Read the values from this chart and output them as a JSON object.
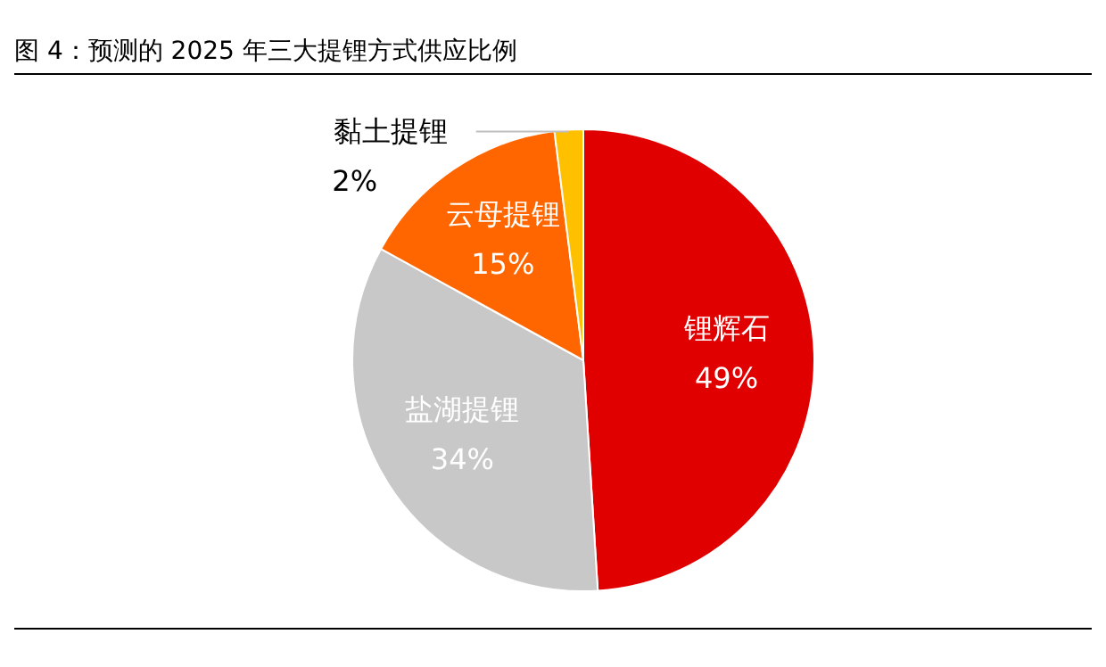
{
  "chart_data": {
    "type": "pie",
    "title": "图 4：预测的 2025 年三大提锂方式供应比例",
    "categories": [
      "锂辉石",
      "盐湖提锂",
      "云母提锂",
      "黏土提锂"
    ],
    "values": [
      49,
      34,
      15,
      2
    ],
    "value_labels": [
      "49%",
      "34%",
      "15%",
      "2%"
    ],
    "colors": [
      "#e00000",
      "#c8c8c8",
      "#ff6600",
      "#ffc000"
    ],
    "legend": false
  }
}
